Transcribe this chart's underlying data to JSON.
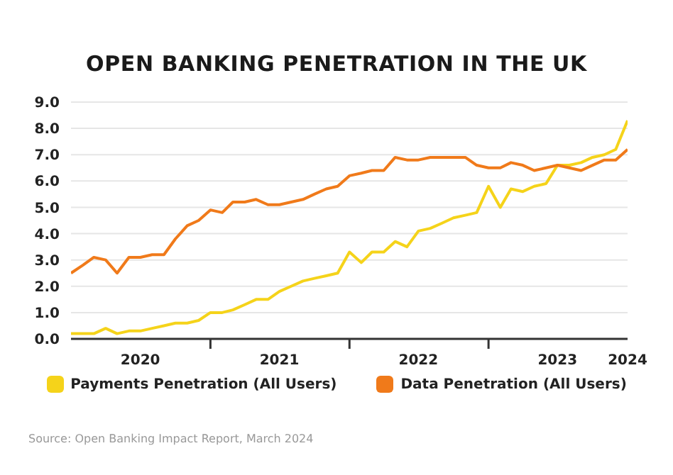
{
  "chart_data": {
    "type": "line",
    "title": "OPEN BANKING PENETRATION IN THE UK",
    "x": [
      "2020-01",
      "2020-02",
      "2020-03",
      "2020-04",
      "2020-05",
      "2020-06",
      "2020-07",
      "2020-08",
      "2020-09",
      "2020-10",
      "2020-11",
      "2020-12",
      "2021-01",
      "2021-02",
      "2021-03",
      "2021-04",
      "2021-05",
      "2021-06",
      "2021-07",
      "2021-08",
      "2021-09",
      "2021-10",
      "2021-11",
      "2021-12",
      "2022-01",
      "2022-02",
      "2022-03",
      "2022-04",
      "2022-05",
      "2022-06",
      "2022-07",
      "2022-08",
      "2022-09",
      "2022-10",
      "2022-11",
      "2022-12",
      "2023-01",
      "2023-02",
      "2023-03",
      "2023-04",
      "2023-05",
      "2023-06",
      "2023-07",
      "2023-08",
      "2023-09",
      "2023-10",
      "2023-11",
      "2023-12",
      "2024-01"
    ],
    "series": [
      {
        "name": "Payments Penetration (All Users)",
        "color": "#f5d31a",
        "values": [
          0.2,
          0.2,
          0.2,
          0.4,
          0.2,
          0.3,
          0.3,
          0.4,
          0.5,
          0.6,
          0.6,
          0.7,
          1.0,
          1.0,
          1.1,
          1.3,
          1.5,
          1.5,
          1.8,
          2.0,
          2.2,
          2.3,
          2.4,
          2.5,
          3.3,
          2.9,
          3.3,
          3.3,
          3.7,
          3.5,
          4.1,
          4.2,
          4.4,
          4.6,
          4.7,
          4.8,
          5.8,
          5.0,
          5.7,
          5.6,
          5.8,
          5.9,
          6.6,
          6.6,
          6.7,
          6.9,
          7.0,
          7.2,
          8.3
        ]
      },
      {
        "name": "Data Penetration (All Users)",
        "color": "#f07a1a",
        "values": [
          2.5,
          2.8,
          3.1,
          3.0,
          2.5,
          3.1,
          3.1,
          3.2,
          3.2,
          3.8,
          4.3,
          4.5,
          4.9,
          4.8,
          5.2,
          5.2,
          5.3,
          5.1,
          5.1,
          5.2,
          5.3,
          5.5,
          5.7,
          5.8,
          6.2,
          6.3,
          6.4,
          6.4,
          6.9,
          6.8,
          6.8,
          6.9,
          6.9,
          6.9,
          6.9,
          6.6,
          6.5,
          6.5,
          6.7,
          6.6,
          6.4,
          6.5,
          6.6,
          6.5,
          6.4,
          6.6,
          6.8,
          6.8,
          7.2
        ]
      }
    ],
    "xlim": [
      "2020-01",
      "2024-01"
    ],
    "xticks": [
      {
        "value": "2020-07",
        "label": "2020"
      },
      {
        "value": "2021-01",
        "label": null
      },
      {
        "value": "2021-07",
        "label": "2021"
      },
      {
        "value": "2022-01",
        "label": null
      },
      {
        "value": "2022-07",
        "label": "2022"
      },
      {
        "value": "2023-01",
        "label": null
      },
      {
        "value": "2023-07",
        "label": "2023"
      },
      {
        "value": "2024-01",
        "label": "2024"
      }
    ],
    "ylim": [
      0,
      9
    ],
    "yticks": [
      {
        "value": 0,
        "label": "0.0"
      },
      {
        "value": 1,
        "label": "1.0"
      },
      {
        "value": 2,
        "label": "2.0"
      },
      {
        "value": 3,
        "label": "3.0"
      },
      {
        "value": 4,
        "label": "4.0"
      },
      {
        "value": 5,
        "label": "5.0"
      },
      {
        "value": 6,
        "label": "6.0"
      },
      {
        "value": 7,
        "label": "7.0"
      },
      {
        "value": 8,
        "label": "8.0"
      },
      {
        "value": 9,
        "label": "9.0"
      }
    ],
    "grid": "y",
    "legend": "bottom",
    "marker": "none",
    "line_style": "solid",
    "annotations": [
      "Source: Open Banking Impact Report, March 2024"
    ]
  }
}
